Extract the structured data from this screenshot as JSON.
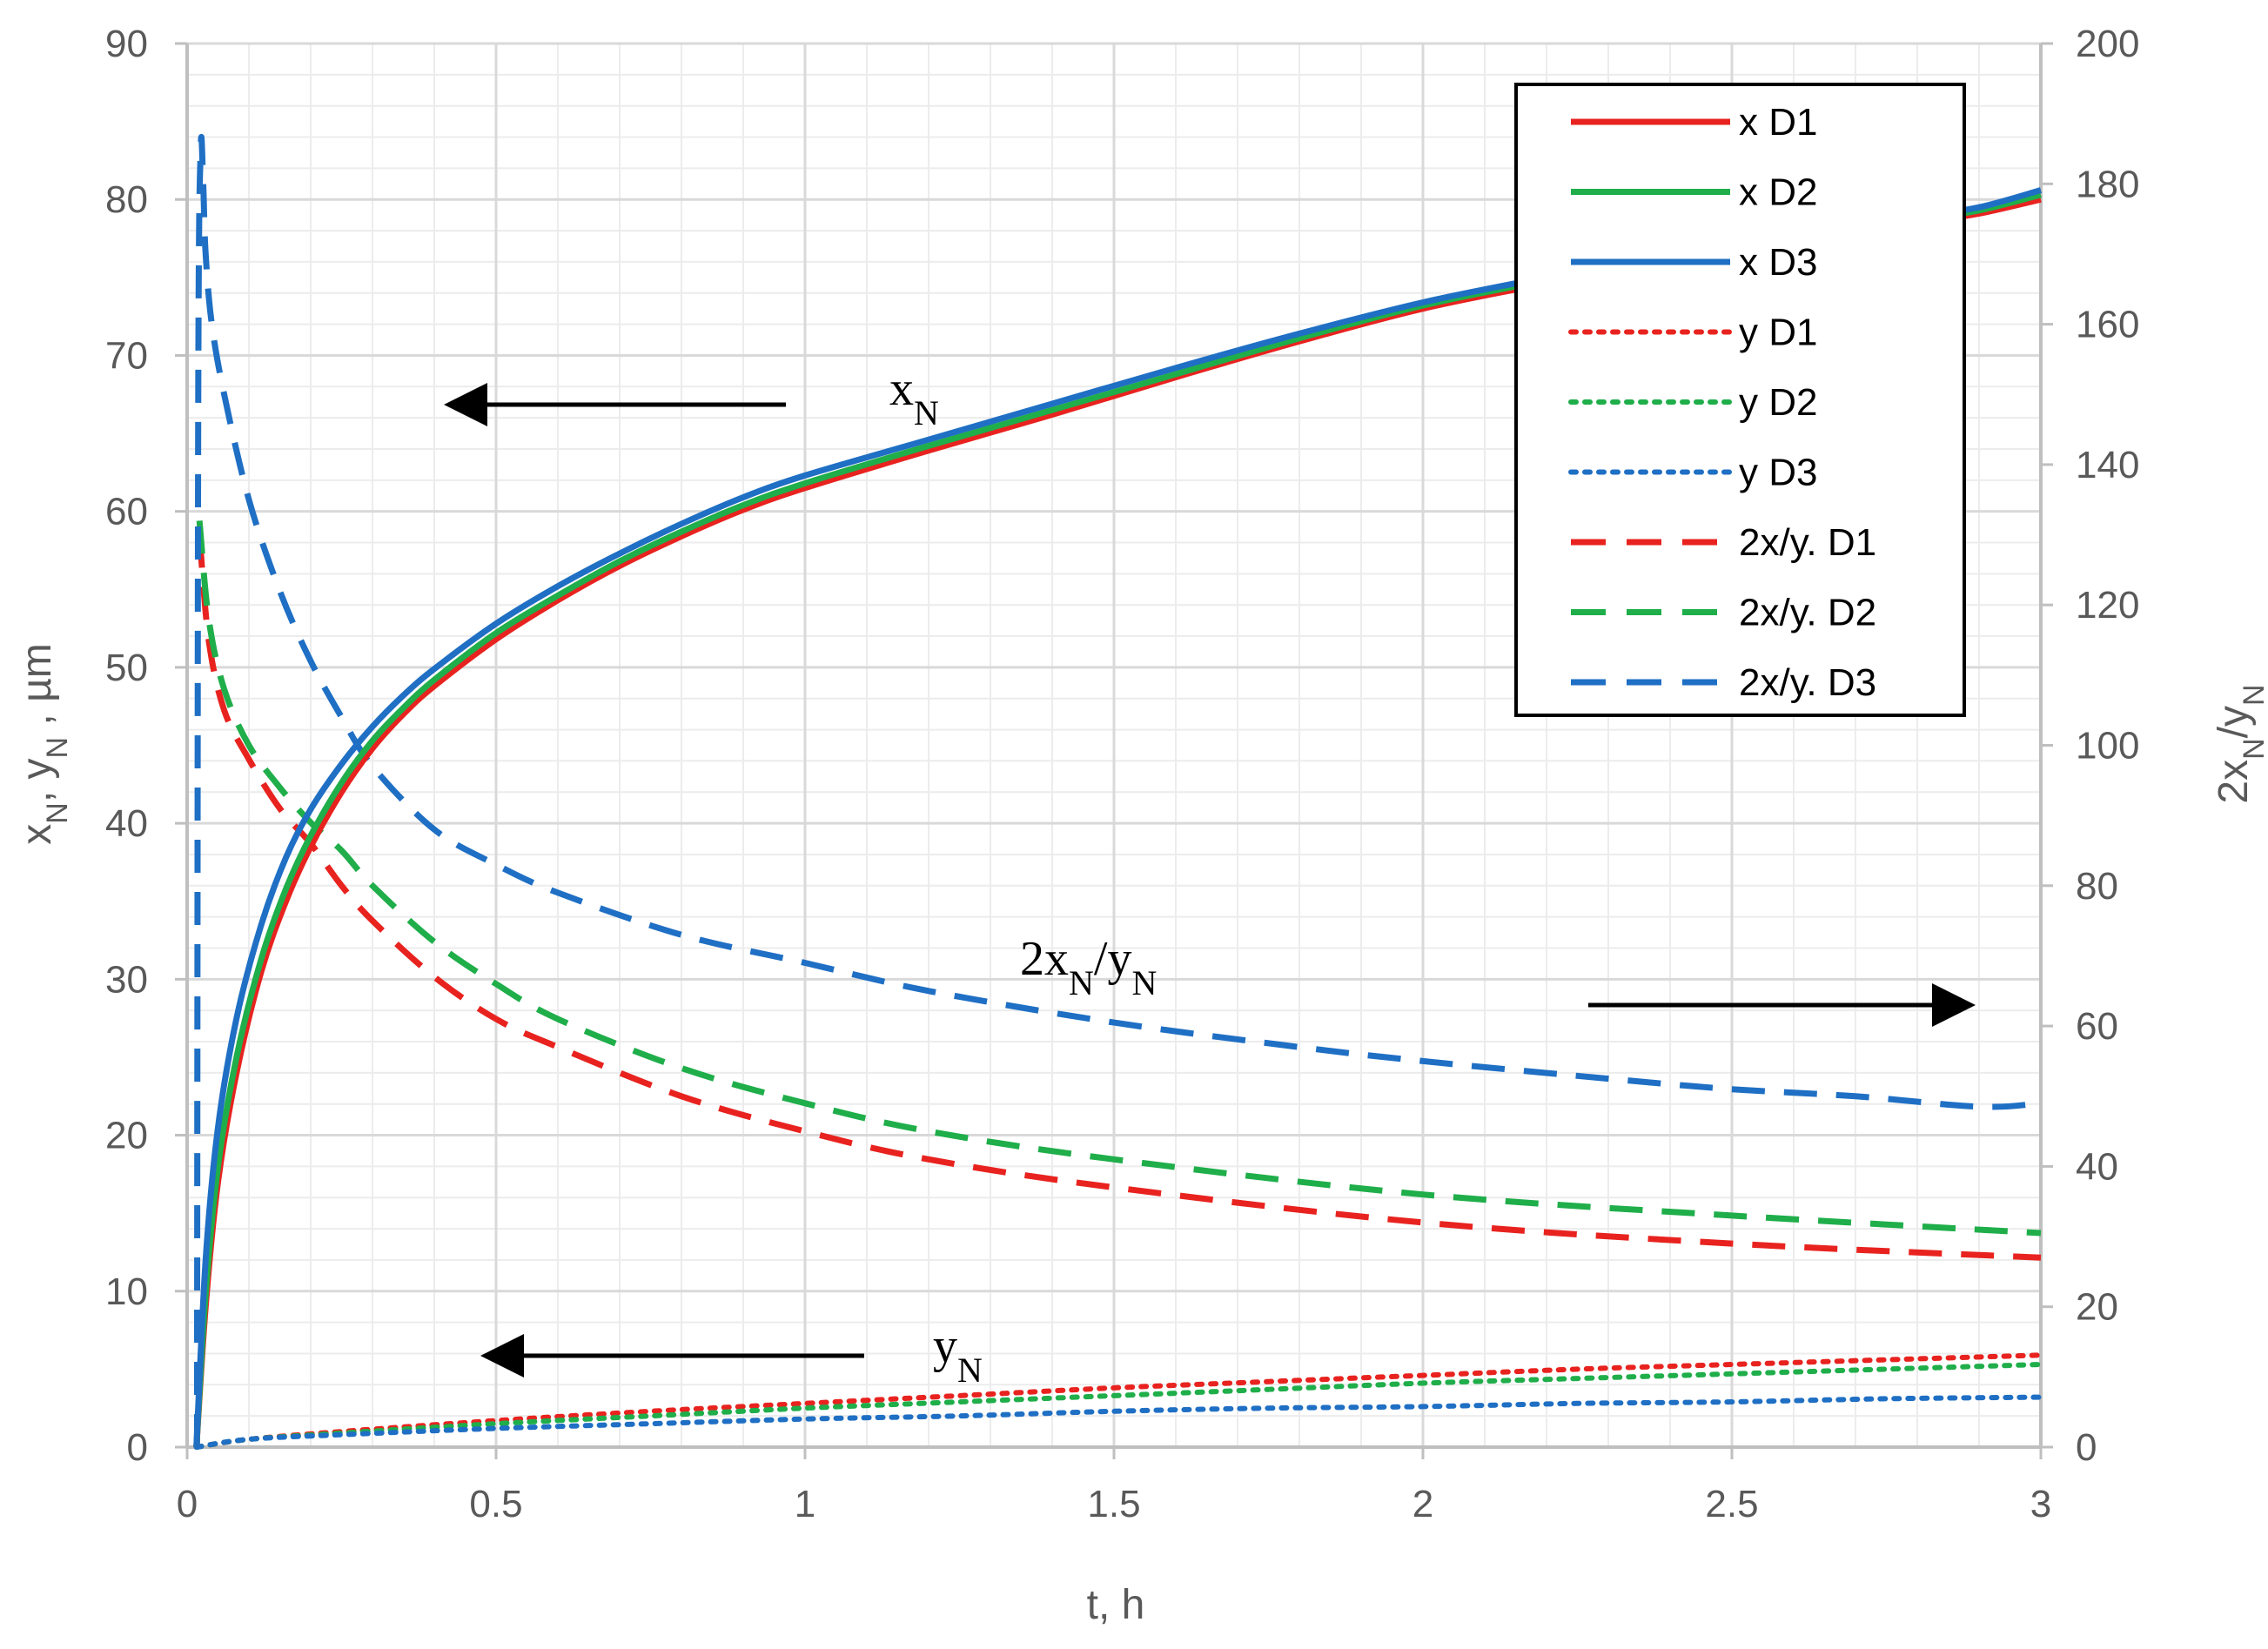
{
  "chart_data": {
    "type": "line",
    "title": "",
    "xlabel": "t, h",
    "ylabel_left": "xN, yN , µm",
    "ylabel_right": "2xN/yN",
    "xlim": [
      0,
      3
    ],
    "ylim_left": [
      0,
      90
    ],
    "ylim_right": [
      0,
      200
    ],
    "x_ticks": [
      "0",
      "0.5",
      "1",
      "1.5",
      "2",
      "2.5",
      "3"
    ],
    "y_left_ticks": [
      "0",
      "10",
      "20",
      "30",
      "40",
      "50",
      "60",
      "70",
      "80",
      "90"
    ],
    "y_right_ticks": [
      "0",
      "20",
      "40",
      "60",
      "80",
      "100",
      "120",
      "140",
      "160",
      "180",
      "200"
    ],
    "grid": true,
    "legend_position": "top-right",
    "series": [
      {
        "name": "x D1",
        "axis": "left",
        "style": "solid",
        "color": "#e8231f",
        "x": [
          0.015,
          0.03,
          0.05,
          0.08,
          0.12,
          0.16,
          0.2,
          0.25,
          0.3,
          0.35,
          0.4,
          0.5,
          0.6,
          0.7,
          0.8,
          0.9,
          1.0,
          1.2,
          1.4,
          1.6,
          1.8,
          2.0,
          2.2,
          2.4,
          2.6,
          2.8,
          2.9,
          3.0
        ],
        "y": [
          0,
          9,
          17,
          24,
          30.5,
          35,
          38.5,
          42,
          44.8,
          47,
          48.8,
          51.8,
          54.3,
          56.5,
          58.4,
          60.1,
          61.5,
          63.9,
          66.2,
          68.6,
          70.9,
          73,
          74.6,
          76,
          77.3,
          78.5,
          79.1,
          80
        ]
      },
      {
        "name": "x D2",
        "axis": "left",
        "style": "solid",
        "color": "#1fae4a",
        "x": [
          0.015,
          0.03,
          0.05,
          0.08,
          0.12,
          0.16,
          0.2,
          0.25,
          0.3,
          0.35,
          0.4,
          0.5,
          0.6,
          0.7,
          0.8,
          0.9,
          1.0,
          1.2,
          1.4,
          1.6,
          1.8,
          2.0,
          2.2,
          2.4,
          2.6,
          2.8,
          2.9,
          3.0
        ],
        "y": [
          0,
          9.8,
          18,
          25,
          31.3,
          35.8,
          39.2,
          42.6,
          45.3,
          47.4,
          49.2,
          52.2,
          54.6,
          56.8,
          58.7,
          60.4,
          61.8,
          64.2,
          66.5,
          68.8,
          71.1,
          73.2,
          74.8,
          76.2,
          77.5,
          78.7,
          79.3,
          80.3
        ]
      },
      {
        "name": "x D3",
        "axis": "left",
        "style": "solid",
        "color": "#1f6fc4",
        "x": [
          0.015,
          0.03,
          0.05,
          0.08,
          0.12,
          0.16,
          0.2,
          0.25,
          0.3,
          0.35,
          0.4,
          0.5,
          0.6,
          0.7,
          0.8,
          0.9,
          1.0,
          1.2,
          1.4,
          1.6,
          1.8,
          2.0,
          2.2,
          2.4,
          2.6,
          2.8,
          2.9,
          3.0
        ],
        "y": [
          0,
          12,
          20.5,
          27.5,
          33.5,
          37.8,
          40.9,
          43.8,
          46.2,
          48.2,
          49.9,
          52.8,
          55.2,
          57.3,
          59.2,
          60.9,
          62.3,
          64.6,
          66.9,
          69.2,
          71.4,
          73.4,
          75,
          76.4,
          77.7,
          78.9,
          79.5,
          80.6
        ]
      },
      {
        "name": "y D1",
        "axis": "left",
        "style": "dotted",
        "color": "#e8231f",
        "x": [
          0.015,
          0.1,
          0.25,
          0.5,
          0.75,
          1.0,
          1.25,
          1.5,
          1.75,
          2.0,
          2.25,
          2.5,
          2.75,
          3.0
        ],
        "y": [
          0,
          0.5,
          1.0,
          1.7,
          2.3,
          2.8,
          3.3,
          3.8,
          4.2,
          4.6,
          5.0,
          5.3,
          5.6,
          5.9
        ]
      },
      {
        "name": "y D2",
        "axis": "left",
        "style": "dotted",
        "color": "#1fae4a",
        "x": [
          0.015,
          0.1,
          0.25,
          0.5,
          0.75,
          1.0,
          1.25,
          1.5,
          1.75,
          2.0,
          2.25,
          2.5,
          2.75,
          3.0
        ],
        "y": [
          0,
          0.5,
          0.9,
          1.5,
          2.0,
          2.5,
          2.9,
          3.3,
          3.7,
          4.1,
          4.4,
          4.7,
          5.0,
          5.3
        ]
      },
      {
        "name": "y D3",
        "axis": "left",
        "style": "dotted",
        "color": "#1f6fc4",
        "x": [
          0.015,
          0.1,
          0.25,
          0.5,
          0.75,
          1.0,
          1.25,
          1.5,
          1.75,
          2.0,
          2.25,
          2.5,
          2.75,
          3.0
        ],
        "y": [
          0,
          0.5,
          0.8,
          1.2,
          1.5,
          1.8,
          2.0,
          2.3,
          2.5,
          2.6,
          2.8,
          2.9,
          3.1,
          3.2
        ]
      },
      {
        "name": "2x/y. D1",
        "axis": "right",
        "style": "dashed",
        "color": "#e8231f",
        "x": [
          0.02,
          0.035,
          0.06,
          0.1,
          0.15,
          0.2,
          0.25,
          0.3,
          0.4,
          0.5,
          0.6,
          0.8,
          1.0,
          1.2,
          1.5,
          2.0,
          2.5,
          3.0
        ],
        "y": [
          130,
          115,
          105,
          98,
          91,
          86,
          80,
          75,
          67,
          61,
          57,
          50,
          45,
          41,
          37,
          32,
          29,
          27
        ]
      },
      {
        "name": "2x/y. D2",
        "axis": "right",
        "style": "dashed",
        "color": "#1fae4a",
        "x": [
          0.02,
          0.035,
          0.06,
          0.1,
          0.15,
          0.2,
          0.25,
          0.3,
          0.4,
          0.5,
          0.6,
          0.8,
          1.0,
          1.2,
          1.5,
          2.0,
          2.5,
          3.0
        ],
        "y": [
          132,
          118,
          108,
          100,
          94,
          89,
          85,
          80,
          72,
          66,
          61,
          54,
          49,
          45,
          41,
          36,
          33,
          30.5
        ]
      },
      {
        "name": "2x/y. D3",
        "axis": "right",
        "style": "dashed",
        "color": "#1f6fc4",
        "x": [
          0.016,
          0.018,
          0.022,
          0.026,
          0.03,
          0.04,
          0.06,
          0.1,
          0.15,
          0.2,
          0.25,
          0.3,
          0.4,
          0.5,
          0.6,
          0.8,
          1.0,
          1.2,
          1.5,
          1.8,
          2.0,
          2.3,
          2.5,
          2.7,
          2.9,
          3.0
        ],
        "y": [
          0,
          150,
          185,
          180,
          170,
          160,
          150,
          135,
          122,
          112,
          104,
          97,
          88,
          83,
          79,
          73,
          69,
          65,
          60.5,
          57,
          55,
          52.5,
          51,
          50,
          48.5,
          49
        ]
      }
    ]
  },
  "annotations": {
    "xn": "x",
    "xn_sub": "N",
    "yn": "y",
    "yn_sub": "N",
    "ratio_a": "2x",
    "ratio_sub1": "N",
    "ratio_b": "/y",
    "ratio_sub2": "N"
  },
  "axis_title_parts": {
    "left": [
      "x",
      "N",
      ", y",
      "N",
      " , µm"
    ],
    "right": [
      "2x",
      "N",
      "/y",
      "N"
    ]
  },
  "colors": {
    "red": "#e8231f",
    "green": "#1fae4a",
    "blue": "#1f6fc4",
    "grid": "#d9d9d9",
    "tick_text": "#595959"
  }
}
